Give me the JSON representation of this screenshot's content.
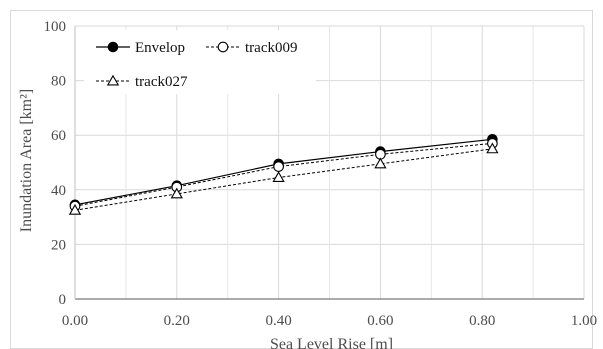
{
  "chart_data": {
    "type": "line",
    "title": "",
    "xlabel": "Sea Level Rise [m]",
    "ylabel": "Inundation Area [km²]",
    "xlim": [
      0,
      1.0
    ],
    "ylim": [
      0,
      100
    ],
    "x_ticks": [
      0,
      0.2,
      0.4,
      0.6,
      0.8,
      1.0
    ],
    "y_ticks": [
      0,
      20,
      40,
      60,
      80,
      100
    ],
    "x_tick_labels": [
      "0.00",
      "0.20",
      "0.40",
      "0.60",
      "0.80",
      "1.00"
    ],
    "y_tick_labels": [
      "0",
      "20",
      "40",
      "60",
      "80",
      "100"
    ],
    "grid": true,
    "legend_position": "top-left",
    "series": [
      {
        "name": "Envelop",
        "x": [
          0.0,
          0.2,
          0.4,
          0.6,
          0.82
        ],
        "y": [
          34.5,
          41.5,
          49.5,
          54.0,
          58.5
        ],
        "line_style": "solid",
        "marker": "filled-circle",
        "color": "#000000"
      },
      {
        "name": "track009",
        "x": [
          0.0,
          0.2,
          0.4,
          0.6,
          0.82
        ],
        "y": [
          34.0,
          41.0,
          48.5,
          53.0,
          57.0
        ],
        "line_style": "dashed",
        "marker": "open-circle",
        "color": "#000000"
      },
      {
        "name": "track027",
        "x": [
          0.0,
          0.2,
          0.4,
          0.6,
          0.82
        ],
        "y": [
          32.5,
          38.5,
          44.5,
          49.5,
          55.0
        ],
        "line_style": "dashed",
        "marker": "open-triangle",
        "color": "#000000"
      }
    ]
  }
}
